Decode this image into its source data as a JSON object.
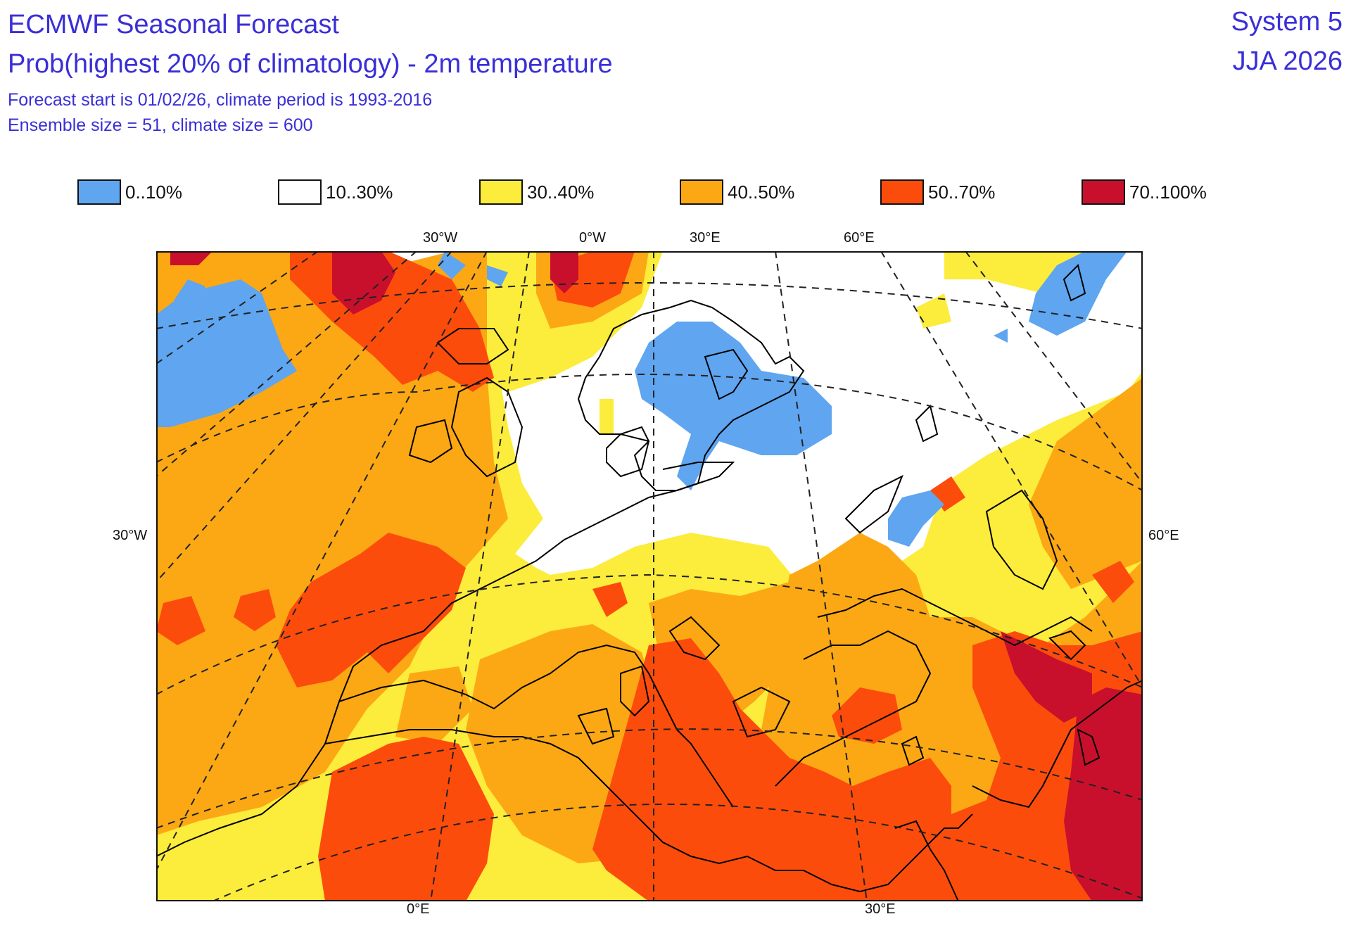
{
  "header": {
    "title": "ECMWF Seasonal Forecast",
    "subtitle": "Prob(highest 20% of climatology) - 2m temperature",
    "info_line1": "Forecast start is 01/02/26, climate period is 1993-2016",
    "info_line2": "Ensemble size = 51, climate size = 600",
    "system": "System 5",
    "season": "JJA 2026"
  },
  "legend": [
    {
      "label": "0..10%",
      "color": "#5fa5f0"
    },
    {
      "label": "10..30%",
      "color": "#ffffff"
    },
    {
      "label": "30..40%",
      "color": "#fcec3c"
    },
    {
      "label": "40..50%",
      "color": "#fca814"
    },
    {
      "label": "50..70%",
      "color": "#fc4c0c"
    },
    {
      "label": "70..100%",
      "color": "#c8102c"
    }
  ],
  "axis_labels": {
    "top": [
      "30°W",
      "0°W",
      "30°E",
      "60°E"
    ],
    "left": "30°W",
    "right": "60°E",
    "bottom": [
      "0°E",
      "30°E"
    ]
  },
  "map": {
    "projection": "polar stereographic, Europe / Mediterranean",
    "colors": {
      "blue": "#5fa5f0",
      "yellow": "#fcec3c",
      "orange": "#fca814",
      "redorange": "#fc4c0c",
      "darkred": "#c8102c",
      "coast": "#000000",
      "grid": "#222222"
    }
  }
}
